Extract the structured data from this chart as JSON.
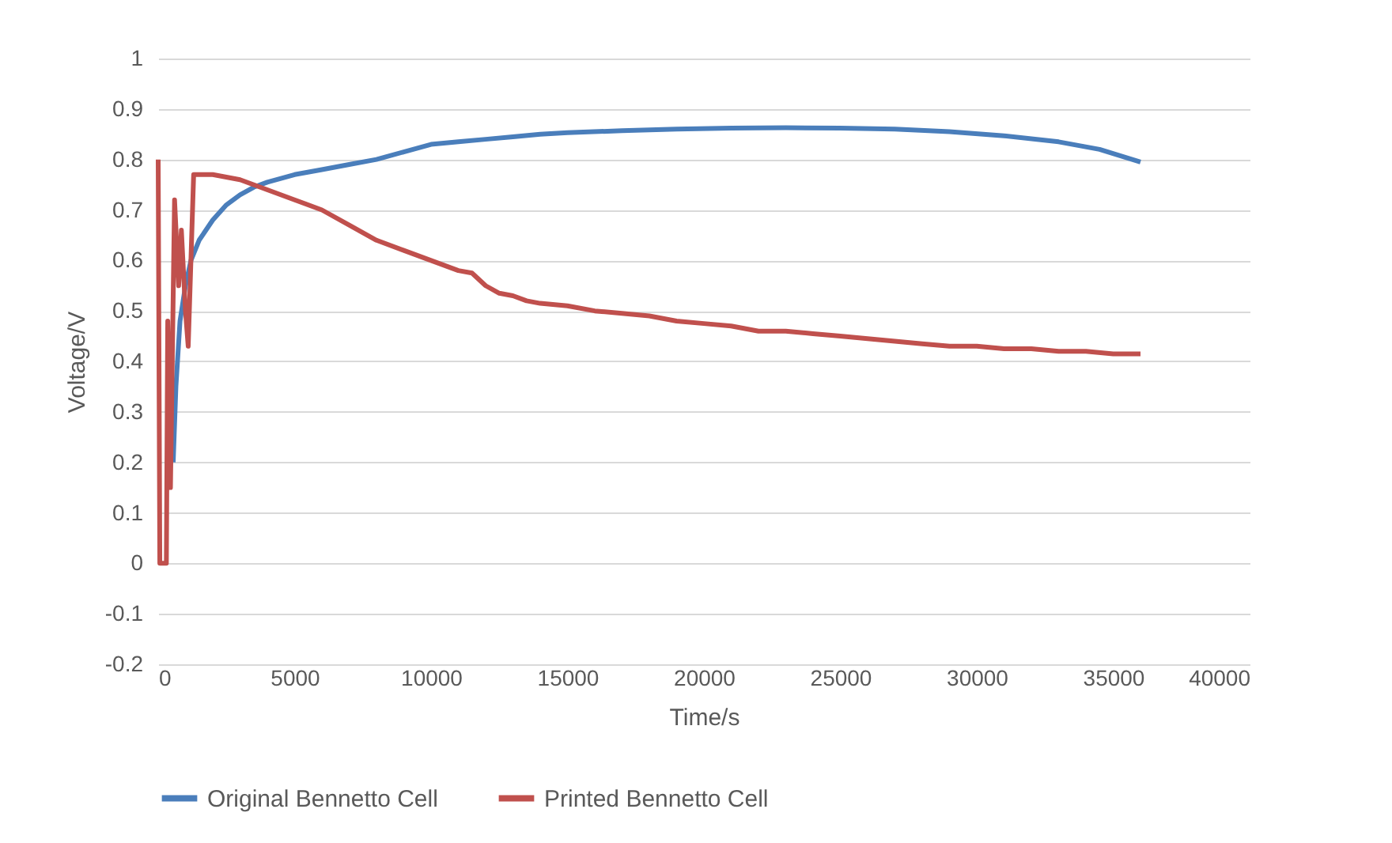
{
  "chart_data": {
    "type": "line",
    "xlabel": "Time/s",
    "ylabel": "Voltage/V",
    "xlim": [
      0,
      40000
    ],
    "xticks": [
      0,
      5000,
      10000,
      15000,
      20000,
      25000,
      30000,
      35000,
      40000
    ],
    "ylim": [
      -0.2,
      1
    ],
    "yticks": [
      -0.2,
      -0.1,
      0,
      0.1,
      0.2,
      0.3,
      0.4,
      0.5,
      0.6,
      0.7,
      0.8,
      0.9,
      1
    ],
    "grid": "y",
    "legend": "bottom",
    "marker": "none",
    "line_style": "solid",
    "series": [
      {
        "name": "Original Bennetto Cell",
        "color": "#4a7ebb",
        "x": [
          550,
          650,
          800,
          1000,
          1200,
          1500,
          2000,
          2500,
          3000,
          3500,
          4000,
          5000,
          6000,
          7000,
          8000,
          9000,
          10000,
          11000,
          12000,
          13000,
          14000,
          15000,
          17000,
          19000,
          21000,
          23000,
          25000,
          27000,
          29000,
          31000,
          33000,
          34500,
          36000
        ],
        "values": [
          0.2,
          0.35,
          0.48,
          0.55,
          0.6,
          0.64,
          0.68,
          0.71,
          0.73,
          0.745,
          0.755,
          0.77,
          0.78,
          0.79,
          0.8,
          0.815,
          0.83,
          0.835,
          0.84,
          0.845,
          0.85,
          0.853,
          0.857,
          0.86,
          0.862,
          0.863,
          0.862,
          0.86,
          0.855,
          0.847,
          0.835,
          0.82,
          0.795
        ]
      },
      {
        "name": "Printed Bennetto Cell",
        "color": "#c0504d",
        "x": [
          0,
          60,
          300,
          350,
          450,
          600,
          750,
          850,
          1000,
          1100,
          1200,
          1300,
          2000,
          3000,
          4000,
          5000,
          6000,
          7000,
          8000,
          9000,
          10000,
          11000,
          11500,
          12000,
          12500,
          13000,
          13500,
          14000,
          15000,
          16000,
          17000,
          18000,
          19000,
          20000,
          21000,
          22000,
          23000,
          24000,
          25000,
          26000,
          27000,
          28000,
          29000,
          30000,
          31000,
          32000,
          33000,
          34000,
          35000,
          36000
        ],
        "values": [
          0.8,
          0,
          0,
          0.48,
          0.15,
          0.72,
          0.55,
          0.66,
          0.5,
          0.43,
          0.6,
          0.77,
          0.77,
          0.76,
          0.74,
          0.72,
          0.7,
          0.67,
          0.64,
          0.62,
          0.6,
          0.58,
          0.575,
          0.55,
          0.535,
          0.53,
          0.52,
          0.515,
          0.51,
          0.5,
          0.495,
          0.49,
          0.48,
          0.475,
          0.47,
          0.46,
          0.46,
          0.455,
          0.45,
          0.445,
          0.44,
          0.435,
          0.43,
          0.43,
          0.425,
          0.425,
          0.42,
          0.42,
          0.415,
          0.415
        ]
      }
    ]
  }
}
